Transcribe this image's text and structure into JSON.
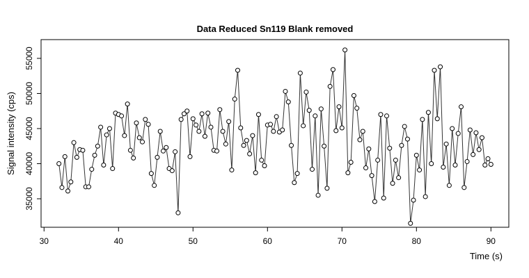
{
  "chart_data": {
    "type": "line",
    "marker": "circle",
    "title": "Data Reduced Sn119 Blank removed",
    "x_label": "Time (s)",
    "y_label": "Signal intensity (cps)",
    "xlim": [
      29.6,
      92.4
    ],
    "ylim": [
      30940,
      57670
    ],
    "xticks": [
      30,
      40,
      50,
      60,
      70,
      80,
      90
    ],
    "yticks": [
      35000,
      40000,
      45000,
      50000,
      55000
    ],
    "x": [
      32.0,
      32.4,
      32.8,
      33.2,
      33.6,
      34.0,
      34.4,
      34.8,
      35.2,
      35.6,
      36.0,
      36.4,
      36.8,
      37.2,
      37.6,
      38.0,
      38.4,
      38.8,
      39.2,
      39.6,
      40.0,
      40.4,
      40.8,
      41.2,
      41.6,
      42.0,
      42.4,
      42.8,
      43.2,
      43.6,
      44.0,
      44.4,
      44.8,
      45.2,
      45.6,
      46.0,
      46.4,
      46.8,
      47.2,
      47.6,
      48.0,
      48.4,
      48.8,
      49.2,
      49.6,
      50.0,
      50.4,
      50.8,
      51.2,
      51.6,
      52.0,
      52.4,
      52.8,
      53.2,
      53.6,
      54.0,
      54.4,
      54.8,
      55.2,
      55.6,
      56.0,
      56.4,
      56.8,
      57.2,
      57.6,
      58.0,
      58.4,
      58.8,
      59.2,
      59.6,
      60.0,
      60.4,
      60.8,
      61.2,
      61.6,
      62.0,
      62.4,
      62.8,
      63.2,
      63.6,
      64.0,
      64.4,
      64.8,
      65.2,
      65.6,
      66.0,
      66.4,
      66.8,
      67.2,
      67.6,
      68.0,
      68.4,
      68.8,
      69.2,
      69.6,
      70.0,
      70.4,
      70.8,
      71.2,
      71.6,
      72.0,
      72.4,
      72.8,
      73.2,
      73.6,
      74.0,
      74.4,
      74.8,
      75.2,
      75.6,
      76.0,
      76.4,
      76.8,
      77.2,
      77.6,
      78.0,
      78.4,
      78.8,
      79.2,
      79.6,
      80.0,
      80.4,
      80.8,
      81.2,
      81.6,
      82.0,
      82.4,
      82.8,
      83.2,
      83.6,
      84.0,
      84.4,
      84.8,
      85.2,
      85.6,
      86.0,
      86.4,
      86.8,
      87.2,
      87.6,
      88.0,
      88.4,
      88.8,
      89.2,
      89.6,
      90.0
    ],
    "series": [
      {
        "color": "#333333",
        "values": [
          40000,
          36600,
          41000,
          36100,
          37400,
          43000,
          40900,
          42000,
          41900,
          36700,
          36700,
          39200,
          41200,
          42500,
          45200,
          39800,
          44100,
          45000,
          39300,
          47200,
          47000,
          46800,
          44000,
          48500,
          41900,
          40800,
          45800,
          43700,
          43100,
          46300,
          45600,
          38600,
          36900,
          40900,
          44600,
          41800,
          42300,
          39300,
          39000,
          41700,
          33000,
          46300,
          47100,
          47500,
          41000,
          46400,
          45500,
          44600,
          47100,
          43900,
          47200,
          45200,
          41900,
          41800,
          47700,
          44600,
          42800,
          46000,
          39100,
          49200,
          53300,
          45100,
          42600,
          43300,
          41400,
          44000,
          38700,
          47000,
          40500,
          39700,
          45500,
          45600,
          44600,
          46700,
          44500,
          44800,
          50300,
          48800,
          42600,
          37300,
          38600,
          52900,
          45400,
          50200,
          47600,
          39200,
          46800,
          35500,
          47800,
          42500,
          36500,
          51000,
          53400,
          44700,
          48100,
          45100,
          56200,
          38700,
          40200,
          49700,
          47900,
          43400,
          44600,
          39400,
          42100,
          38300,
          34600,
          40500,
          47000,
          35100,
          46800,
          42200,
          37200,
          40500,
          38000,
          42600,
          45300,
          43500,
          31500,
          34800,
          41200,
          39100,
          46300,
          35300,
          47300,
          40000,
          53300,
          46400,
          53800,
          39500,
          42800,
          36900,
          45000,
          39800,
          44300,
          48100,
          36600,
          40300,
          44800,
          41300,
          44400,
          42000,
          43700,
          39800,
          40700,
          39900
        ]
      }
    ]
  }
}
